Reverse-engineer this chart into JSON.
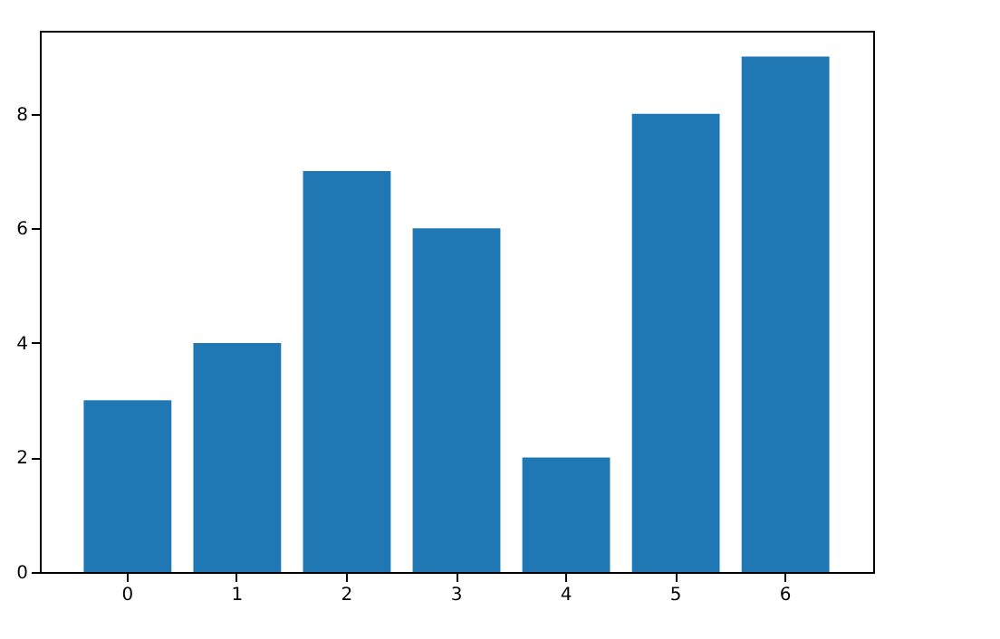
{
  "chart_data": {
    "type": "bar",
    "categories": [
      "0",
      "1",
      "2",
      "3",
      "4",
      "5",
      "6"
    ],
    "values": [
      3,
      4,
      7,
      6,
      2,
      8,
      9
    ],
    "color": "#1f77b4",
    "ylim": [
      0,
      9.45
    ],
    "yticks": [
      0,
      2,
      4,
      6,
      8
    ],
    "grid": false
  }
}
